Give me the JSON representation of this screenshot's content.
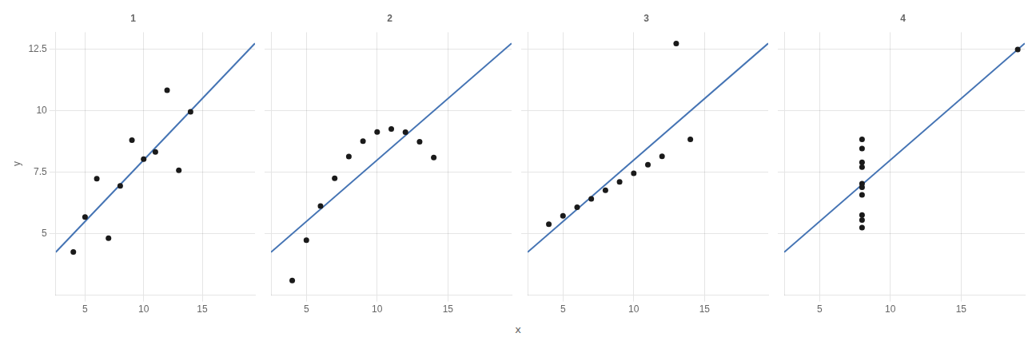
{
  "chart_data": [
    {
      "type": "scatter",
      "title": "1",
      "xlabel": "x",
      "ylabel": "y",
      "xlim": [
        2.5,
        19.5
      ],
      "ylim": [
        2.5,
        13.2
      ],
      "xticks": [
        5,
        10,
        15
      ],
      "yticks": [
        5,
        7.5,
        10,
        12.5
      ],
      "grid": true,
      "series": [
        {
          "type": "scatter",
          "color": "#1a1a1a",
          "x": [
            10,
            8,
            13,
            9,
            11,
            14,
            6,
            4,
            12,
            7,
            5
          ],
          "values": [
            8.04,
            6.95,
            7.58,
            8.81,
            8.33,
            9.96,
            7.24,
            4.26,
            10.84,
            4.82,
            5.68
          ]
        },
        {
          "type": "line",
          "color": "#4574B4",
          "x": [
            2.5,
            19.5
          ],
          "values": [
            4.25031818,
            12.75186364
          ]
        }
      ]
    },
    {
      "type": "scatter",
      "title": "2",
      "xlim": [
        2.5,
        19.5
      ],
      "ylim": [
        2.5,
        13.2
      ],
      "xticks": [
        5,
        10,
        15
      ],
      "yticks": [
        5,
        7.5,
        10,
        12.5
      ],
      "grid": true,
      "tick_labels": "x",
      "series": [
        {
          "type": "scatter",
          "color": "#1a1a1a",
          "x": [
            10,
            8,
            13,
            9,
            11,
            14,
            6,
            4,
            12,
            7,
            5
          ],
          "values": [
            9.14,
            8.14,
            8.74,
            8.77,
            9.26,
            8.1,
            6.13,
            3.1,
            9.13,
            7.26,
            4.74
          ]
        },
        {
          "type": "line",
          "color": "#4574B4",
          "x": [
            2.5,
            19.5
          ],
          "values": [
            4.25090909,
            12.75090909
          ]
        }
      ]
    },
    {
      "type": "scatter",
      "title": "3",
      "xlim": [
        2.5,
        19.5
      ],
      "ylim": [
        2.5,
        13.2
      ],
      "xticks": [
        5,
        10,
        15
      ],
      "yticks": [
        5,
        7.5,
        10,
        12.5
      ],
      "grid": true,
      "tick_labels": "x",
      "series": [
        {
          "type": "scatter",
          "color": "#1a1a1a",
          "x": [
            10,
            8,
            13,
            9,
            11,
            14,
            6,
            4,
            12,
            7,
            5
          ],
          "values": [
            7.46,
            6.77,
            12.74,
            7.11,
            7.81,
            8.84,
            6.08,
            5.39,
            8.15,
            6.42,
            5.73
          ]
        },
        {
          "type": "line",
          "color": "#4574B4",
          "x": [
            2.5,
            19.5
          ],
          "values": [
            4.25177273,
            12.74713636
          ]
        }
      ]
    },
    {
      "type": "scatter",
      "title": "4",
      "xlim": [
        2.5,
        19.5
      ],
      "ylim": [
        2.5,
        13.2
      ],
      "xticks": [
        5,
        10,
        15
      ],
      "yticks": [
        5,
        7.5,
        10,
        12.5
      ],
      "grid": true,
      "tick_labels": "x",
      "series": [
        {
          "type": "scatter",
          "color": "#1a1a1a",
          "x": [
            8,
            8,
            8,
            8,
            8,
            8,
            8,
            19,
            8,
            8,
            8
          ],
          "values": [
            6.58,
            5.76,
            7.71,
            8.84,
            8.47,
            7.04,
            5.25,
            12.5,
            5.56,
            7.91,
            6.89
          ]
        },
        {
          "type": "line",
          "color": "#4574B4",
          "x": [
            2.5,
            19.5
          ],
          "values": [
            4.2515,
            12.74995455
          ]
        }
      ]
    }
  ]
}
